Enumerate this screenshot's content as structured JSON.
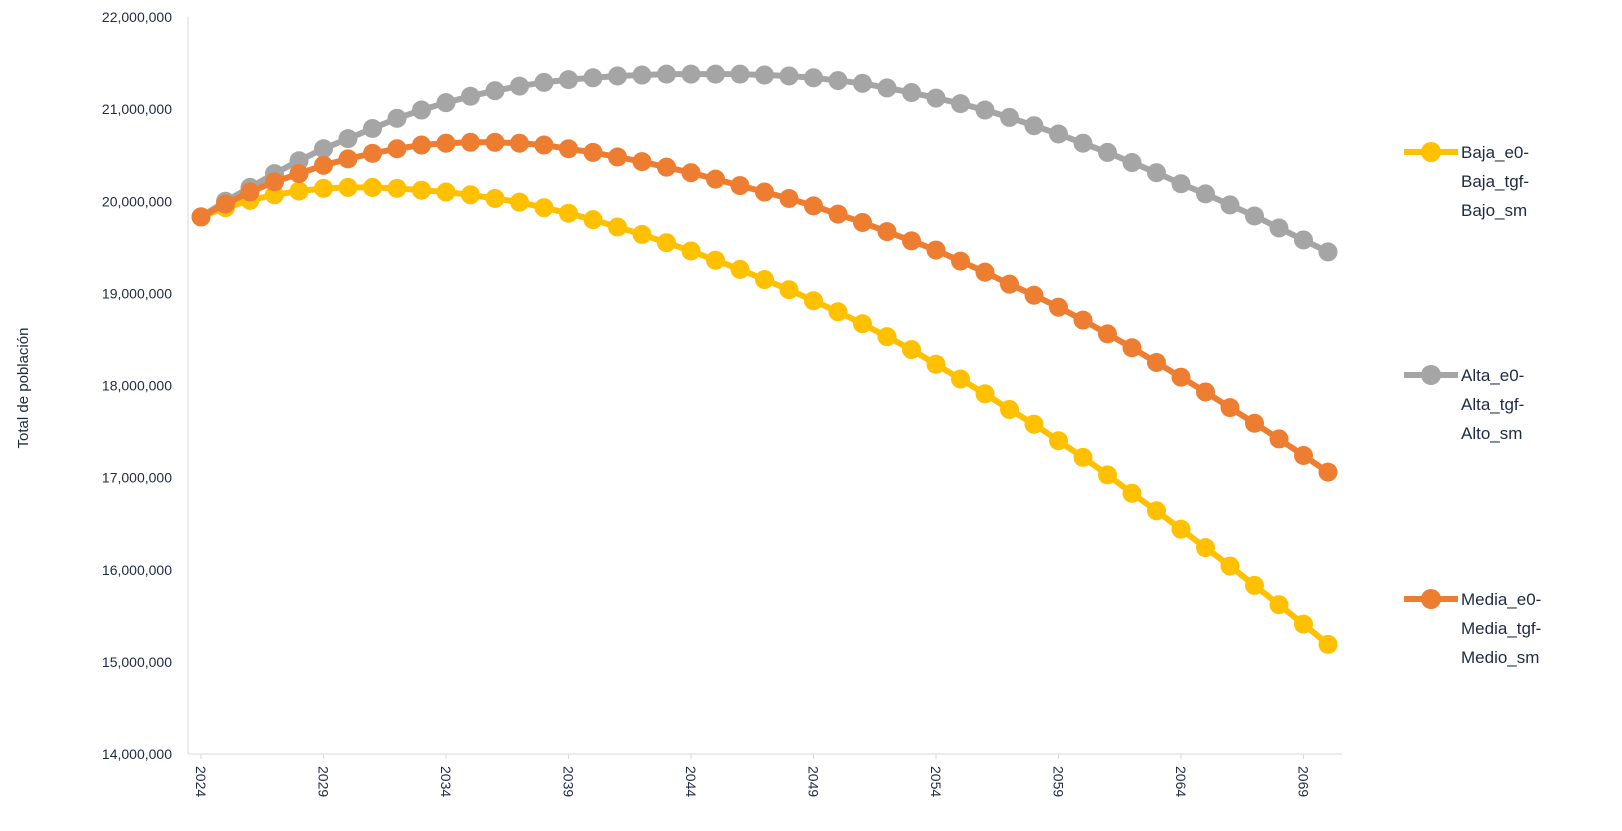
{
  "chart_data": {
    "type": "line",
    "title": "",
    "xlabel": "",
    "ylabel": "Total de población",
    "ylim": [
      14000000,
      22000000
    ],
    "yticks": [
      14000000,
      15000000,
      16000000,
      17000000,
      18000000,
      19000000,
      20000000,
      21000000,
      22000000
    ],
    "ytick_labels": [
      "14,000,000",
      "15,000,000",
      "16,000,000",
      "17,000,000",
      "18,000,000",
      "19,000,000",
      "20,000,000",
      "21,000,000",
      "22,000,000"
    ],
    "xtick_labels": [
      "2024",
      "2029",
      "2034",
      "2039",
      "2044",
      "2049",
      "2054",
      "2059",
      "2064",
      "2069"
    ],
    "x": [
      2024,
      2025,
      2026,
      2027,
      2028,
      2029,
      2030,
      2031,
      2032,
      2033,
      2034,
      2035,
      2036,
      2037,
      2038,
      2039,
      2040,
      2041,
      2042,
      2043,
      2044,
      2045,
      2046,
      2047,
      2048,
      2049,
      2050,
      2051,
      2052,
      2053,
      2054,
      2055,
      2056,
      2057,
      2058,
      2059,
      2060,
      2061,
      2062,
      2063,
      2064,
      2065,
      2066,
      2067,
      2068,
      2069,
      2070
    ],
    "grid": false,
    "legend_position": "right",
    "series": [
      {
        "name": "Baja_e0-Baja_tgf-Bajo_sm",
        "legend_lines": [
          "Baja_e0-",
          "Baja_tgf-",
          "Bajo_sm"
        ],
        "color": "#FFC000",
        "values": [
          19830000,
          19930000,
          20010000,
          20070000,
          20110000,
          20140000,
          20150000,
          20150000,
          20140000,
          20120000,
          20100000,
          20070000,
          20030000,
          19990000,
          19930000,
          19870000,
          19800000,
          19720000,
          19640000,
          19550000,
          19460000,
          19360000,
          19260000,
          19150000,
          19040000,
          18920000,
          18800000,
          18670000,
          18530000,
          18390000,
          18230000,
          18070000,
          17910000,
          17740000,
          17580000,
          17400000,
          17220000,
          17030000,
          16830000,
          16640000,
          16440000,
          16240000,
          16040000,
          15830000,
          15620000,
          15410000,
          15190000
        ]
      },
      {
        "name": "Alta_e0-Alta_tgf-Alto_sm",
        "legend_lines": [
          "Alta_e0-",
          "Alta_tgf-",
          "Alto_sm"
        ],
        "color": "#A5A5A5",
        "values": [
          19830000,
          20000000,
          20150000,
          20300000,
          20440000,
          20570000,
          20680000,
          20790000,
          20900000,
          20990000,
          21070000,
          21140000,
          21200000,
          21250000,
          21290000,
          21320000,
          21340000,
          21360000,
          21370000,
          21380000,
          21380000,
          21380000,
          21380000,
          21370000,
          21360000,
          21340000,
          21310000,
          21280000,
          21230000,
          21180000,
          21120000,
          21060000,
          20990000,
          20910000,
          20820000,
          20730000,
          20630000,
          20530000,
          20420000,
          20310000,
          20190000,
          20080000,
          19960000,
          19840000,
          19710000,
          19580000,
          19450000
        ]
      },
      {
        "name": "Media_e0-Media_tgf-Medio_sm",
        "legend_lines": [
          "Media_e0-",
          "Media_tgf-",
          "Medio_sm"
        ],
        "color": "#ED7D31",
        "values": [
          19830000,
          19970000,
          20100000,
          20210000,
          20300000,
          20390000,
          20460000,
          20520000,
          20570000,
          20610000,
          20630000,
          20640000,
          20640000,
          20630000,
          20610000,
          20570000,
          20530000,
          20480000,
          20430000,
          20370000,
          20310000,
          20240000,
          20170000,
          20100000,
          20030000,
          19950000,
          19860000,
          19770000,
          19670000,
          19570000,
          19470000,
          19350000,
          19230000,
          19100000,
          18980000,
          18850000,
          18710000,
          18560000,
          18410000,
          18250000,
          18090000,
          17930000,
          17760000,
          17590000,
          17420000,
          17240000,
          17060000
        ]
      }
    ]
  }
}
